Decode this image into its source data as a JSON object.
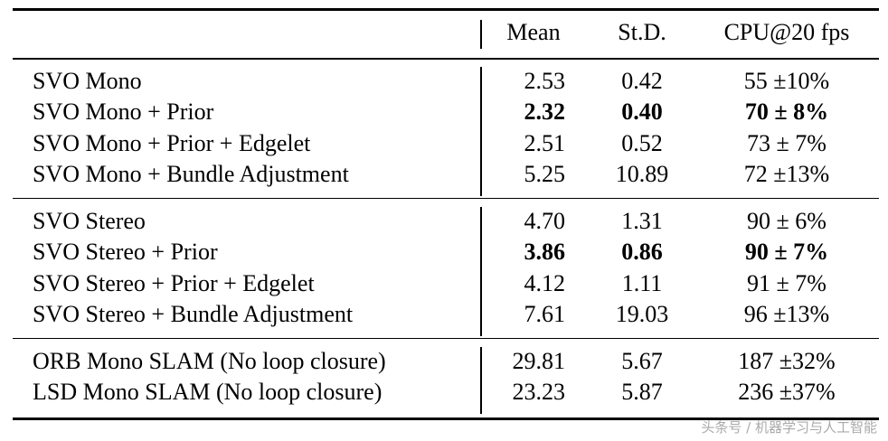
{
  "table": {
    "header": [
      "Mean",
      "St.D.",
      "CPU@20 fps"
    ],
    "groups": [
      [
        {
          "cells": [
            "SVO Mono",
            "2.53",
            "0.42",
            "55 ±10%"
          ]
        },
        {
          "cells": [
            "SVO Mono + Prior",
            "2.32",
            "0.40",
            "70 ± 8%"
          ],
          "bold": true
        },
        {
          "cells": [
            "SVO Mono + Prior + Edgelet",
            "2.51",
            "0.52",
            "73 ± 7%"
          ]
        },
        {
          "cells": [
            "SVO Mono + Bundle Adjustment",
            "5.25",
            "10.89",
            "72 ±13%"
          ]
        }
      ],
      [
        {
          "cells": [
            "SVO Stereo",
            "4.70",
            "1.31",
            "90 ± 6%"
          ]
        },
        {
          "cells": [
            "SVO Stereo + Prior",
            "3.86",
            "0.86",
            "90 ± 7%"
          ],
          "bold": true
        },
        {
          "cells": [
            "SVO Stereo + Prior + Edgelet",
            "4.12",
            "1.11",
            "91 ± 7%"
          ]
        },
        {
          "cells": [
            "SVO Stereo + Bundle Adjustment",
            "7.61",
            "19.03",
            "96 ±13%"
          ]
        }
      ],
      [
        {
          "cells": [
            "ORB Mono SLAM (No loop closure)",
            "29.81",
            "5.67",
            "187 ±32%"
          ]
        },
        {
          "cells": [
            "LSD Mono SLAM (No loop closure)",
            "23.23",
            "5.87",
            "236 ±37%"
          ]
        }
      ]
    ]
  },
  "watermark": "头条号 / 机器学习与人工智能"
}
